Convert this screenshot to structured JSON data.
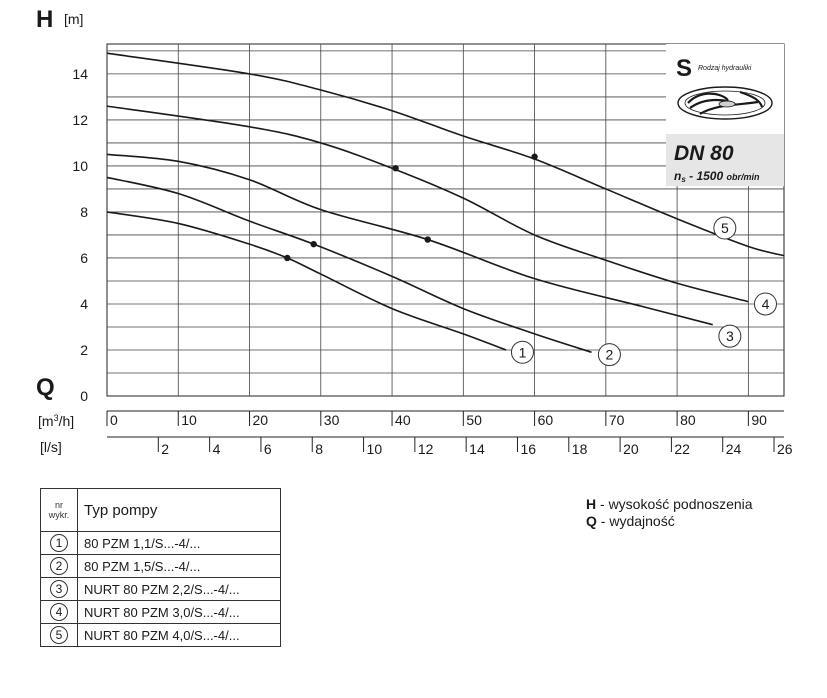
{
  "chart_data": {
    "type": "line",
    "y_axis": {
      "symbol": "H",
      "unit": "[m]",
      "ticks": [
        "14",
        "12",
        "10",
        "8",
        "6",
        "4",
        "2",
        "0"
      ],
      "ylim": [
        0,
        15.3
      ]
    },
    "x_axis_m3h": {
      "symbol": "Q",
      "unit": "[m³/h]",
      "ticks": [
        "0",
        "10",
        "20",
        "30",
        "40",
        "50",
        "60",
        "70",
        "80",
        "90"
      ],
      "xlim": [
        0,
        95
      ]
    },
    "x_axis_ls": {
      "unit": "[l/s]",
      "ticks": [
        "2",
        "4",
        "6",
        "8",
        "10",
        "12",
        "14",
        "16",
        "18",
        "20",
        "22",
        "24",
        "26"
      ]
    },
    "grid": true,
    "series": [
      {
        "name": "1",
        "points": [
          [
            0,
            8.0
          ],
          [
            10,
            7.5
          ],
          [
            20,
            6.6
          ],
          [
            25.3,
            6.0
          ],
          [
            30,
            5.3
          ],
          [
            40,
            3.8
          ],
          [
            50,
            2.7
          ],
          [
            56,
            2.0
          ]
        ],
        "marker": [
          25.3,
          6.0
        ],
        "label_at": [
          58.3,
          1.9
        ]
      },
      {
        "name": "2",
        "points": [
          [
            0,
            9.5
          ],
          [
            10,
            8.8
          ],
          [
            20,
            7.6
          ],
          [
            29,
            6.6
          ],
          [
            40,
            5.2
          ],
          [
            50,
            3.8
          ],
          [
            60,
            2.7
          ],
          [
            68,
            1.9
          ]
        ],
        "marker": [
          29,
          6.6
        ],
        "label_at": [
          70.5,
          1.8
        ]
      },
      {
        "name": "3",
        "points": [
          [
            0,
            10.5
          ],
          [
            10,
            10.2
          ],
          [
            20,
            9.4
          ],
          [
            30,
            8.1
          ],
          [
            45,
            6.8
          ],
          [
            60,
            5.1
          ],
          [
            75,
            3.9
          ],
          [
            85,
            3.1
          ]
        ],
        "marker": [
          45,
          6.8
        ],
        "label_at": [
          87.4,
          2.6
        ]
      },
      {
        "name": "4",
        "points": [
          [
            0,
            12.6
          ],
          [
            20,
            11.7
          ],
          [
            30,
            11.0
          ],
          [
            40,
            9.9
          ],
          [
            50,
            8.6
          ],
          [
            60,
            7.0
          ],
          [
            70,
            5.9
          ],
          [
            80,
            4.9
          ],
          [
            90,
            4.1
          ]
        ],
        "marker": [
          40.5,
          9.9
        ],
        "label_at": [
          92.4,
          4.0
        ]
      },
      {
        "name": "5",
        "points": [
          [
            0,
            14.9
          ],
          [
            20,
            14.0
          ],
          [
            30,
            13.3
          ],
          [
            40,
            12.4
          ],
          [
            50,
            11.3
          ],
          [
            60,
            10.3
          ],
          [
            70,
            9.0
          ],
          [
            80,
            7.7
          ],
          [
            90,
            6.5
          ],
          [
            95,
            6.1
          ]
        ],
        "marker": [
          60,
          10.4
        ],
        "label_at": [
          86.7,
          7.3
        ]
      }
    ]
  },
  "info_box": {
    "letter": "S",
    "type_caption": "Rodzaj hydrauliki",
    "dn": "DN 80",
    "ns_symbol": "n",
    "ns_sub": "s",
    "ns_value": " - 1500 ",
    "ns_unit": "obr/min"
  },
  "legend_table": {
    "header_nr": "nr wykr.",
    "header_type": "Typ pompy",
    "rows": [
      {
        "num": "1",
        "type": "80 PZM 1,1/S...-4/..."
      },
      {
        "num": "2",
        "type": "80 PZM 1,5/S...-4/..."
      },
      {
        "num": "3",
        "type": "NURT 80 PZM 2,2/S...-4/..."
      },
      {
        "num": "4",
        "type": "NURT 80 PZM 3,0/S...-4/..."
      },
      {
        "num": "5",
        "type": "NURT 80 PZM 4,0/S...-4/..."
      }
    ]
  },
  "notes": [
    {
      "key": "H",
      "text": " - wysokość podnoszenia"
    },
    {
      "key": "Q",
      "text": " - wydajność"
    }
  ]
}
